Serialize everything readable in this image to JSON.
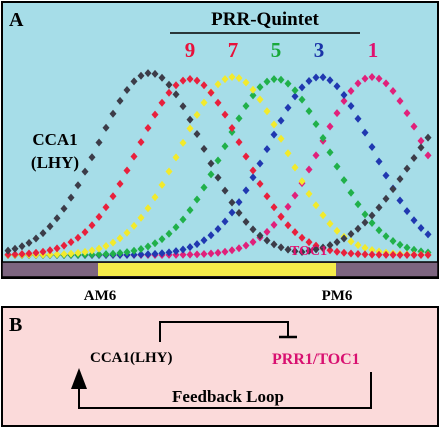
{
  "panel_a": {
    "letter": "A",
    "group_title": "PRR-Quintet",
    "prr_numbers": [
      {
        "label": "9",
        "color": "#e8103a"
      },
      {
        "label": "7",
        "color": "#e8103a"
      },
      {
        "label": "5",
        "color": "#18a83a"
      },
      {
        "label": "3",
        "color": "#1a34a8"
      },
      {
        "label": "1",
        "color": "#e0106e"
      }
    ],
    "cca1_line1": "CCA1",
    "cca1_line2": "(LHY)",
    "toc1_label": "TOC1",
    "time_labels": {
      "am": "AM6",
      "pm": "PM6"
    },
    "background_color": "#a6dde8",
    "day_bar_color": "#f5ec4a",
    "night_bar_color": "#7d6580",
    "wave_colors": {
      "cca1": "#3c3c48",
      "prr9": "#e8203c",
      "prr7": "#f2ea2c",
      "prr5": "#20b04a",
      "prr3": "#2038b0",
      "prr1": "#e0207a"
    }
  },
  "panel_b": {
    "letter": "B",
    "cca1_label": "CCA1(LHY)",
    "prr_label": "PRR1/TOC1",
    "loop_label": "Feedback Loop",
    "background_color": "#fbdada",
    "prr_color": "#d81070"
  }
}
